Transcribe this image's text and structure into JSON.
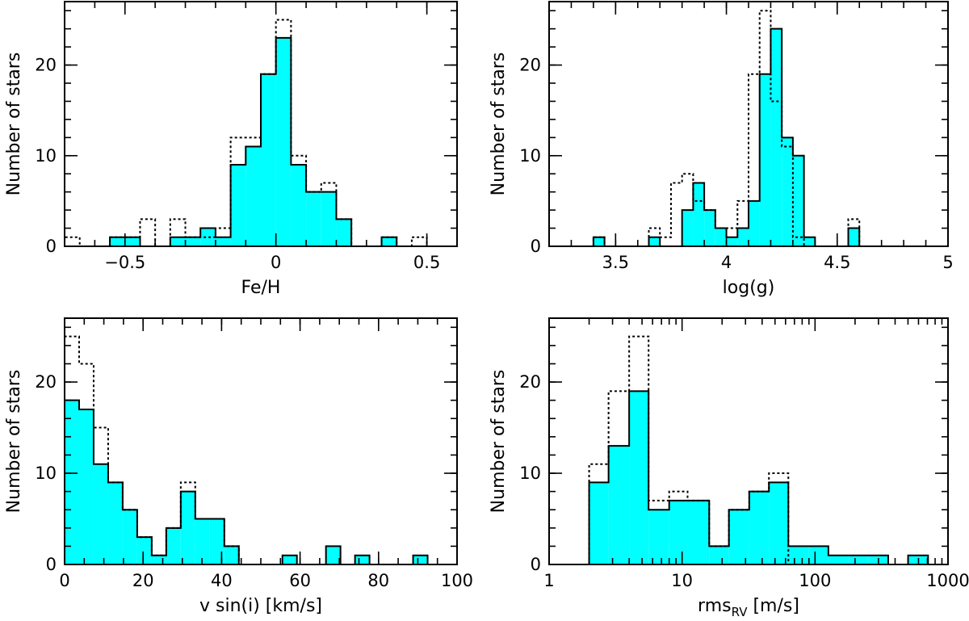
{
  "colors": {
    "fill": "#00ffff",
    "frame": "#000000",
    "outline": "#000000"
  },
  "chart_data": [
    {
      "type": "bar",
      "id": "feh",
      "scale": "linear",
      "xlabel": "Fe/H",
      "ylabel": "Number of stars",
      "xlim": [
        -0.7,
        0.6
      ],
      "ylim": [
        0,
        27
      ],
      "xticks": [
        -0.5,
        0,
        0.5
      ],
      "xtick_labels": [
        "−0.5",
        "0",
        "0.5"
      ],
      "xminor": 0.1,
      "yticks": [
        0,
        10,
        20
      ],
      "yminor": 2,
      "series": [
        {
          "name": "filled",
          "style": "filled",
          "edges": [
            -0.55,
            -0.45,
            -0.35,
            -0.3,
            -0.25,
            -0.2,
            -0.15,
            -0.1,
            -0.05,
            0.0,
            0.05,
            0.1,
            0.15,
            0.2,
            0.25,
            0.35,
            0.4
          ],
          "values": [
            1,
            0,
            1,
            1,
            2,
            1,
            9,
            11,
            19,
            23,
            9,
            6,
            6,
            3,
            0,
            1
          ]
        },
        {
          "name": "dotted",
          "style": "dotted",
          "edges": [
            -0.7,
            -0.65,
            -0.6,
            -0.55,
            -0.5,
            -0.45,
            -0.4,
            -0.35,
            -0.3,
            -0.25,
            -0.2,
            -0.15,
            -0.1,
            -0.05,
            0.0,
            0.05,
            0.1,
            0.15,
            0.2,
            0.25,
            0.3,
            0.35,
            0.4,
            0.45,
            0.5
          ],
          "values": [
            1,
            0,
            0,
            1,
            1,
            3,
            0,
            3,
            1,
            1,
            2,
            12,
            12,
            19,
            25,
            10,
            6,
            7,
            3,
            0,
            0,
            1,
            0,
            1
          ]
        }
      ]
    },
    {
      "type": "bar",
      "id": "logg",
      "scale": "linear",
      "xlabel": "log(g)",
      "ylabel": "Number of stars",
      "xlim": [
        3.2,
        5.0
      ],
      "ylim": [
        0,
        27
      ],
      "xticks": [
        3.5,
        4,
        4.5,
        5
      ],
      "xtick_labels": [
        "3.5",
        "4",
        "4.5",
        "5"
      ],
      "xminor": 0.1,
      "yticks": [
        0,
        10,
        20
      ],
      "yminor": 2,
      "series": [
        {
          "name": "filled",
          "style": "filled",
          "edges": [
            3.4,
            3.45,
            3.5,
            3.55,
            3.6,
            3.65,
            3.7,
            3.75,
            3.8,
            3.85,
            3.9,
            3.95,
            4.0,
            4.05,
            4.1,
            4.15,
            4.2,
            4.25,
            4.3,
            4.35,
            4.4,
            4.45,
            4.5,
            4.55,
            4.6,
            4.65,
            4.7,
            4.75,
            4.8,
            4.85
          ],
          "values": [
            1,
            0,
            0,
            0,
            0,
            1,
            0,
            0,
            4,
            7,
            4,
            2,
            1,
            2,
            5,
            19,
            24,
            12,
            10,
            1,
            0,
            0,
            0,
            2,
            0,
            0,
            0,
            0,
            0
          ]
        },
        {
          "name": "dotted",
          "style": "dotted",
          "edges": [
            3.4,
            3.45,
            3.5,
            3.55,
            3.6,
            3.65,
            3.7,
            3.75,
            3.8,
            3.85,
            3.9,
            3.95,
            4.0,
            4.05,
            4.1,
            4.15,
            4.2,
            4.25,
            4.3,
            4.35,
            4.4,
            4.45,
            4.5,
            4.55,
            4.6,
            4.65,
            4.7,
            4.75,
            4.8,
            4.85
          ],
          "values": [
            1,
            0,
            0,
            0,
            0,
            2,
            1,
            7,
            8,
            5,
            4,
            2,
            2,
            5,
            19,
            26,
            16,
            11,
            1,
            0,
            0,
            0,
            0,
            3,
            0,
            0,
            0,
            0,
            0
          ]
        }
      ]
    },
    {
      "type": "bar",
      "id": "vsini",
      "scale": "linear",
      "xlabel": "v sin(i) [km/s]",
      "ylabel": "Number of stars",
      "xlim": [
        0,
        100
      ],
      "ylim": [
        0,
        27
      ],
      "xticks": [
        0,
        20,
        40,
        60,
        80,
        100
      ],
      "xtick_labels": [
        "0",
        "20",
        "40",
        "60",
        "80",
        "100"
      ],
      "xminor": 5,
      "yticks": [
        0,
        10,
        20
      ],
      "yminor": 2,
      "series": [
        {
          "name": "filled",
          "style": "filled",
          "edges": [
            0,
            3.7,
            7.4,
            11.1,
            14.8,
            18.5,
            22.2,
            25.9,
            29.6,
            33.3,
            37,
            40.7,
            44.4,
            48.1,
            51.8,
            55.5,
            59.2,
            62.9,
            66.6,
            70.3,
            74,
            77.7,
            81.4,
            85.1,
            88.8,
            92.5,
            96.2
          ],
          "values": [
            18,
            17,
            11,
            9,
            6,
            3,
            1,
            4,
            8,
            5,
            5,
            2,
            0,
            0,
            0,
            1,
            0,
            0,
            2,
            0,
            1,
            0,
            0,
            0,
            1,
            0
          ]
        },
        {
          "name": "dotted",
          "style": "dotted",
          "edges": [
            0,
            3.7,
            7.4,
            11.1,
            14.8,
            18.5,
            22.2,
            25.9,
            29.6,
            33.3,
            37,
            40.7,
            44.4
          ],
          "values": [
            25,
            22,
            15,
            9,
            6,
            3,
            1,
            4,
            9,
            5,
            5,
            2
          ]
        }
      ]
    },
    {
      "type": "bar",
      "id": "rms",
      "scale": "log",
      "xlabel": "rms_RV [m/s]",
      "xlabel_main": "rms",
      "xlabel_sub": "RV",
      "xlabel_units": " [m/s]",
      "ylabel": "Number of stars",
      "xlim": [
        1,
        1000
      ],
      "ylim": [
        0,
        27
      ],
      "xticks": [
        1,
        10,
        100,
        1000
      ],
      "xtick_labels": [
        "1",
        "10",
        "100",
        "1000"
      ],
      "yticks": [
        0,
        10,
        20
      ],
      "yminor": 2,
      "series": [
        {
          "name": "filled",
          "style": "filled",
          "edges": [
            2,
            2.8,
            4,
            5.6,
            8,
            11,
            16,
            22.5,
            32,
            45,
            63,
            90,
            126,
            178,
            251,
            355,
            501,
            708
          ],
          "values": [
            9,
            13,
            19,
            6,
            7,
            7,
            2,
            6,
            8,
            9,
            2,
            2,
            1,
            1,
            1,
            0,
            1
          ]
        },
        {
          "name": "dotted",
          "style": "dotted",
          "edges": [
            2,
            2.8,
            4,
            5.6,
            8,
            11,
            16,
            22.5,
            32,
            45,
            63
          ],
          "values": [
            11,
            19,
            25,
            7,
            8,
            7,
            2,
            6,
            8,
            10
          ]
        }
      ]
    }
  ]
}
